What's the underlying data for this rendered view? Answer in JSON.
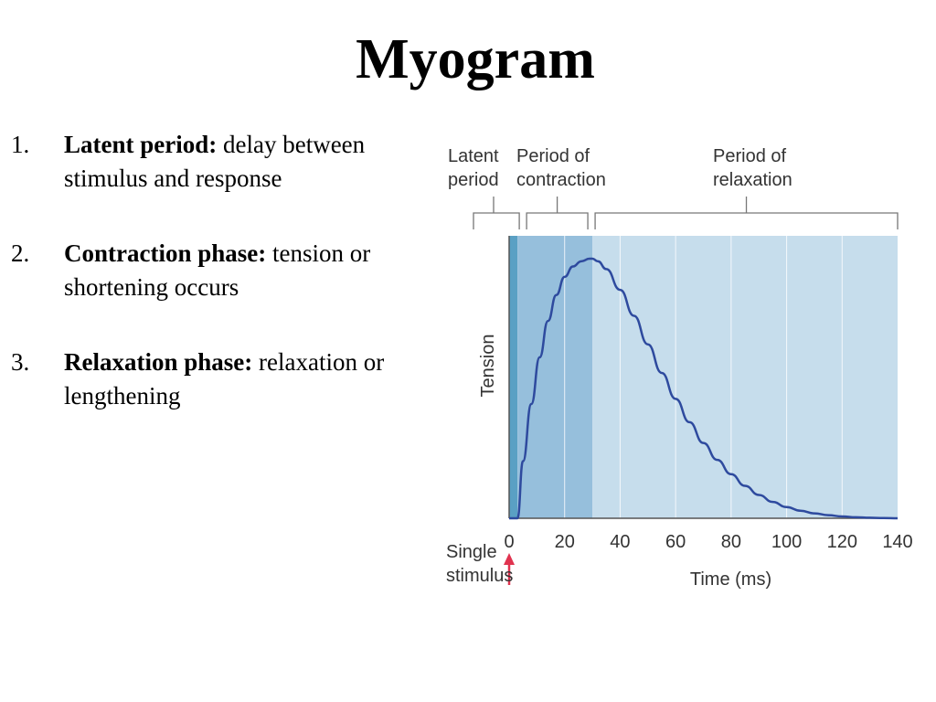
{
  "title": "Myogram",
  "points": [
    {
      "num": "1.",
      "term": "Latent period:",
      "text": " delay between stimulus and response"
    },
    {
      "num": "2.",
      "term": "Contraction phase:",
      "text": " tension or shortening occurs"
    },
    {
      "num": "3.",
      "term": "Relaxation phase:",
      "text": " relaxation or lengthening"
    }
  ],
  "colors": {
    "latent_band": "#5aa0c4",
    "contraction_band": "#96bfdc",
    "relaxation_band": "#c6ddec",
    "curve": "#2e4a9e",
    "stimulus_arrow": "#e0334f",
    "axis": "#555555"
  },
  "chart_data": {
    "type": "line",
    "xlabel": "Time (ms)",
    "ylabel": "Tension",
    "xlim": [
      0,
      140
    ],
    "x_ticks": [
      0,
      20,
      40,
      60,
      80,
      100,
      120,
      140
    ],
    "grid": true,
    "phases": [
      {
        "label_lines": [
          "Latent",
          "period"
        ],
        "start": 0,
        "end": 3
      },
      {
        "label_lines": [
          "Period of",
          "contraction"
        ],
        "start": 3,
        "end": 30
      },
      {
        "label_lines": [
          "Period of",
          "relaxation"
        ],
        "start": 30,
        "end": 140
      }
    ],
    "stimulus_label_lines": [
      "Single",
      "stimulus"
    ],
    "stimulus_x": 0,
    "series": [
      {
        "x": [
          0,
          3,
          5,
          8,
          11,
          14,
          17,
          20,
          23,
          26,
          29,
          30,
          32,
          35,
          40,
          45,
          50,
          55,
          60,
          65,
          70,
          75,
          80,
          85,
          90,
          95,
          100,
          105,
          110,
          115,
          120,
          125,
          130,
          135,
          140
        ],
        "y": [
          0,
          0.0,
          0.22,
          0.44,
          0.62,
          0.76,
          0.86,
          0.93,
          0.97,
          0.99,
          1.0,
          1.0,
          0.99,
          0.96,
          0.88,
          0.78,
          0.67,
          0.56,
          0.46,
          0.37,
          0.29,
          0.225,
          0.17,
          0.125,
          0.09,
          0.063,
          0.043,
          0.029,
          0.019,
          0.012,
          0.007,
          0.004,
          0.002,
          0.001,
          0
        ]
      }
    ]
  }
}
